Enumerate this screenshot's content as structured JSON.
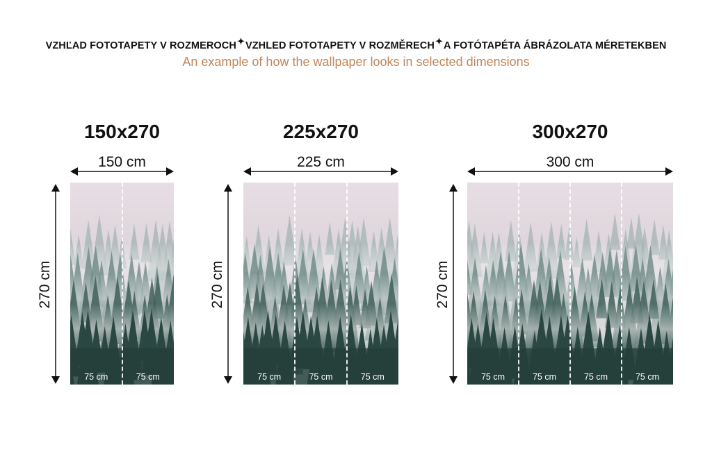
{
  "header": {
    "titles": [
      "VZHĽAD FOTOTAPETY V ROZMEROCH",
      "VZHLED FOTOTAPETY V ROZMĚRECH",
      "A FOTÓTAPÉTA ÁBRÁZOLATA MÉRETEKBEN"
    ],
    "separator_icon": "sparkle-icon",
    "subtitle": "An example of how the wallpaper looks in selected dimensions"
  },
  "colors": {
    "subtitle": "#c0865a",
    "sky": "#e6dbe2",
    "trees": "#2e4d47"
  },
  "panels": [
    {
      "title": "150x270",
      "width_label": "150 cm",
      "height_label": "270 cm",
      "strips": [
        "75 cm",
        "75 cm"
      ]
    },
    {
      "title": "225x270",
      "width_label": "225 cm",
      "height_label": "270 cm",
      "strips": [
        "75 cm",
        "75 cm",
        "75 cm"
      ]
    },
    {
      "title": "300x270",
      "width_label": "300 cm",
      "height_label": "270 cm",
      "strips": [
        "75 cm",
        "75 cm",
        "75 cm",
        "75 cm"
      ]
    }
  ]
}
